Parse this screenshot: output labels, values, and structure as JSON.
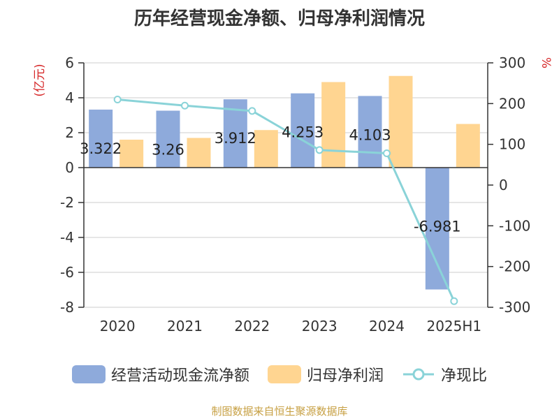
{
  "chart_data": {
    "type": "bar",
    "title": "历年经营现金净额、归母净利润情况",
    "categories": [
      "2020",
      "2021",
      "2022",
      "2023",
      "2024",
      "2025H1"
    ],
    "left_axis": {
      "label": "(亿元)",
      "min": -8,
      "max": 6,
      "ticks": [
        6,
        4,
        2,
        0,
        -2,
        -4,
        -6,
        -8
      ]
    },
    "right_axis": {
      "label": "%",
      "min": -300,
      "max": 300,
      "ticks": [
        300,
        200,
        100,
        0,
        -100,
        -200,
        -300
      ]
    },
    "series": [
      {
        "name": "经营活动现金流净额",
        "kind": "bar",
        "axis": "left",
        "color": "#8eaadb",
        "values": [
          3.322,
          3.26,
          3.912,
          4.253,
          4.103,
          -6.981
        ],
        "labels": [
          "3.322",
          "3.26",
          "3.912",
          "4.253",
          "4.103",
          "-6.981"
        ]
      },
      {
        "name": "归母净利润",
        "kind": "bar",
        "axis": "left",
        "color": "#ffd591",
        "values": [
          1.6,
          1.7,
          2.15,
          4.9,
          5.25,
          2.5
        ]
      },
      {
        "name": "净现比",
        "kind": "line",
        "axis": "right",
        "color": "#8ad3d8",
        "values": [
          210,
          195,
          182,
          86,
          78,
          -285
        ]
      }
    ],
    "grid": true,
    "legend_position": "bottom"
  },
  "source": "制图数据来自恒生聚源数据库"
}
